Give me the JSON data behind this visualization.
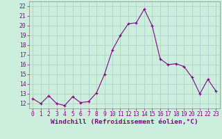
{
  "x": [
    0,
    1,
    2,
    3,
    4,
    5,
    6,
    7,
    8,
    9,
    10,
    11,
    12,
    13,
    14,
    15,
    16,
    17,
    18,
    19,
    20,
    21,
    22,
    23
  ],
  "y": [
    12.5,
    12.0,
    12.8,
    12.0,
    11.8,
    12.7,
    12.1,
    12.2,
    13.1,
    15.0,
    17.5,
    19.0,
    20.2,
    20.3,
    21.7,
    20.0,
    16.6,
    16.0,
    16.1,
    15.8,
    14.7,
    13.0,
    14.5,
    13.3
  ],
  "line_color": "#880088",
  "bg_color": "#cceedd",
  "grid_color": "#aacccc",
  "xlabel": "Windchill (Refroidissement éolien,°C)",
  "ylim": [
    11.5,
    22.5
  ],
  "xlim": [
    -0.5,
    23.5
  ],
  "yticks": [
    12,
    13,
    14,
    15,
    16,
    17,
    18,
    19,
    20,
    21,
    22
  ],
  "xticks": [
    0,
    1,
    2,
    3,
    4,
    5,
    6,
    7,
    8,
    9,
    10,
    11,
    12,
    13,
    14,
    15,
    16,
    17,
    18,
    19,
    20,
    21,
    22,
    23
  ],
  "tick_fontsize": 5.8,
  "xlabel_fontsize": 6.8,
  "spine_color": "#888888"
}
